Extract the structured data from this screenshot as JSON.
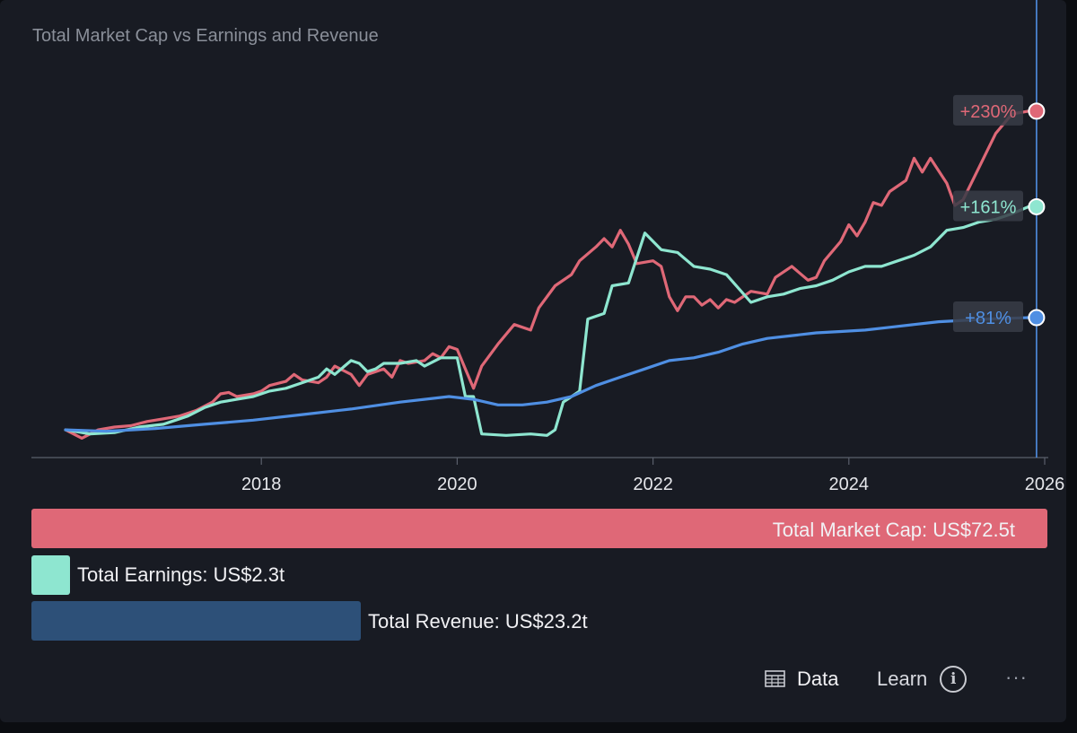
{
  "chart_data": {
    "type": "line",
    "title": "Total Market Cap vs Earnings and Revenue",
    "x_ticks": [
      "2018",
      "2020",
      "2022",
      "2024",
      "2026"
    ],
    "xlim": [
      "2016-01",
      "2026-01"
    ],
    "ylim": [
      -20,
      250
    ],
    "grid": false,
    "cursor_date": "2025-12",
    "series": [
      {
        "name": "Total Market Cap",
        "color": "#df6877",
        "end_label": "+230%",
        "points": [
          [
            "2016-01",
            0
          ],
          [
            "2016-03",
            -6
          ],
          [
            "2016-05",
            0
          ],
          [
            "2016-07",
            2
          ],
          [
            "2016-09",
            3
          ],
          [
            "2016-11",
            6
          ],
          [
            "2017-01",
            8
          ],
          [
            "2017-03",
            10
          ],
          [
            "2017-05",
            14
          ],
          [
            "2017-07",
            20
          ],
          [
            "2017-08",
            26
          ],
          [
            "2017-09",
            27
          ],
          [
            "2017-10",
            24
          ],
          [
            "2017-12",
            26
          ],
          [
            "2018-01",
            28
          ],
          [
            "2018-02",
            32
          ],
          [
            "2018-04",
            35
          ],
          [
            "2018-05",
            40
          ],
          [
            "2018-06",
            36
          ],
          [
            "2018-08",
            34
          ],
          [
            "2018-09",
            38
          ],
          [
            "2018-10",
            46
          ],
          [
            "2018-12",
            40
          ],
          [
            "2019-01",
            32
          ],
          [
            "2019-02",
            40
          ],
          [
            "2019-04",
            44
          ],
          [
            "2019-05",
            38
          ],
          [
            "2019-06",
            50
          ],
          [
            "2019-07",
            48
          ],
          [
            "2019-09",
            50
          ],
          [
            "2019-10",
            55
          ],
          [
            "2019-11",
            52
          ],
          [
            "2019-12",
            60
          ],
          [
            "2020-01",
            58
          ],
          [
            "2020-02",
            44
          ],
          [
            "2020-03",
            30
          ],
          [
            "2020-04",
            46
          ],
          [
            "2020-06",
            62
          ],
          [
            "2020-08",
            76
          ],
          [
            "2020-10",
            72
          ],
          [
            "2020-11",
            88
          ],
          [
            "2021-01",
            104
          ],
          [
            "2021-03",
            112
          ],
          [
            "2021-04",
            122
          ],
          [
            "2021-06",
            132
          ],
          [
            "2021-07",
            138
          ],
          [
            "2021-08",
            132
          ],
          [
            "2021-09",
            144
          ],
          [
            "2021-10",
            134
          ],
          [
            "2021-11",
            120
          ],
          [
            "2022-01",
            122
          ],
          [
            "2022-02",
            118
          ],
          [
            "2022-03",
            96
          ],
          [
            "2022-04",
            86
          ],
          [
            "2022-05",
            96
          ],
          [
            "2022-06",
            96
          ],
          [
            "2022-07",
            90
          ],
          [
            "2022-08",
            94
          ],
          [
            "2022-09",
            88
          ],
          [
            "2022-10",
            94
          ],
          [
            "2022-11",
            92
          ],
          [
            "2022-12",
            96
          ],
          [
            "2023-01",
            100
          ],
          [
            "2023-03",
            98
          ],
          [
            "2023-04",
            110
          ],
          [
            "2023-06",
            118
          ],
          [
            "2023-08",
            108
          ],
          [
            "2023-09",
            110
          ],
          [
            "2023-10",
            122
          ],
          [
            "2023-12",
            136
          ],
          [
            "2024-01",
            148
          ],
          [
            "2024-02",
            140
          ],
          [
            "2024-03",
            150
          ],
          [
            "2024-04",
            164
          ],
          [
            "2024-05",
            162
          ],
          [
            "2024-06",
            172
          ],
          [
            "2024-08",
            180
          ],
          [
            "2024-09",
            196
          ],
          [
            "2024-10",
            186
          ],
          [
            "2024-11",
            196
          ],
          [
            "2025-01",
            178
          ],
          [
            "2025-02",
            162
          ],
          [
            "2025-03",
            166
          ],
          [
            "2025-05",
            190
          ],
          [
            "2025-07",
            214
          ],
          [
            "2025-09",
            228
          ],
          [
            "2025-11",
            230
          ]
        ]
      },
      {
        "name": "Total Earnings",
        "color": "#8ee6d0",
        "end_label": "+161%",
        "points": [
          [
            "2016-01",
            0
          ],
          [
            "2016-04",
            -3
          ],
          [
            "2016-07",
            -2
          ],
          [
            "2016-10",
            2
          ],
          [
            "2017-01",
            4
          ],
          [
            "2017-02",
            6
          ],
          [
            "2017-04",
            10
          ],
          [
            "2017-06",
            16
          ],
          [
            "2017-08",
            20
          ],
          [
            "2017-10",
            22
          ],
          [
            "2017-12",
            24
          ],
          [
            "2018-02",
            28
          ],
          [
            "2018-04",
            30
          ],
          [
            "2018-06",
            34
          ],
          [
            "2018-08",
            38
          ],
          [
            "2018-09",
            44
          ],
          [
            "2018-10",
            40
          ],
          [
            "2018-12",
            50
          ],
          [
            "2019-01",
            48
          ],
          [
            "2019-02",
            42
          ],
          [
            "2019-03",
            44
          ],
          [
            "2019-04",
            48
          ],
          [
            "2019-06",
            48
          ],
          [
            "2019-08",
            50
          ],
          [
            "2019-09",
            46
          ],
          [
            "2019-11",
            52
          ],
          [
            "2020-01",
            52
          ],
          [
            "2020-02",
            24
          ],
          [
            "2020-03",
            24
          ],
          [
            "2020-04",
            -3
          ],
          [
            "2020-07",
            -4
          ],
          [
            "2020-10",
            -3
          ],
          [
            "2020-12",
            -4
          ],
          [
            "2021-01",
            0
          ],
          [
            "2021-02",
            20
          ],
          [
            "2021-04",
            28
          ],
          [
            "2021-05",
            80
          ],
          [
            "2021-07",
            84
          ],
          [
            "2021-08",
            104
          ],
          [
            "2021-10",
            106
          ],
          [
            "2021-12",
            142
          ],
          [
            "2022-02",
            130
          ],
          [
            "2022-04",
            128
          ],
          [
            "2022-06",
            118
          ],
          [
            "2022-08",
            116
          ],
          [
            "2022-10",
            112
          ],
          [
            "2023-01",
            92
          ],
          [
            "2023-03",
            96
          ],
          [
            "2023-05",
            98
          ],
          [
            "2023-07",
            102
          ],
          [
            "2023-09",
            104
          ],
          [
            "2023-11",
            108
          ],
          [
            "2024-01",
            114
          ],
          [
            "2024-03",
            118
          ],
          [
            "2024-05",
            118
          ],
          [
            "2024-07",
            122
          ],
          [
            "2024-09",
            126
          ],
          [
            "2024-11",
            132
          ],
          [
            "2025-01",
            144
          ],
          [
            "2025-03",
            146
          ],
          [
            "2025-05",
            150
          ],
          [
            "2025-07",
            152
          ],
          [
            "2025-09",
            156
          ],
          [
            "2025-11",
            161
          ]
        ]
      },
      {
        "name": "Total Revenue",
        "color": "#4f8fe3",
        "end_label": "+81%",
        "points": [
          [
            "2016-01",
            0
          ],
          [
            "2016-06",
            -1
          ],
          [
            "2016-12",
            1
          ],
          [
            "2017-06",
            4
          ],
          [
            "2017-12",
            7
          ],
          [
            "2018-06",
            11
          ],
          [
            "2018-12",
            15
          ],
          [
            "2019-06",
            20
          ],
          [
            "2019-12",
            24
          ],
          [
            "2020-03",
            22
          ],
          [
            "2020-06",
            18
          ],
          [
            "2020-09",
            18
          ],
          [
            "2020-12",
            20
          ],
          [
            "2021-03",
            24
          ],
          [
            "2021-06",
            32
          ],
          [
            "2021-09",
            38
          ],
          [
            "2021-12",
            44
          ],
          [
            "2022-03",
            50
          ],
          [
            "2022-06",
            52
          ],
          [
            "2022-09",
            56
          ],
          [
            "2022-12",
            62
          ],
          [
            "2023-03",
            66
          ],
          [
            "2023-06",
            68
          ],
          [
            "2023-09",
            70
          ],
          [
            "2023-12",
            71
          ],
          [
            "2024-03",
            72
          ],
          [
            "2024-06",
            74
          ],
          [
            "2024-09",
            76
          ],
          [
            "2024-12",
            78
          ],
          [
            "2025-03",
            79
          ],
          [
            "2025-06",
            80
          ],
          [
            "2025-11",
            81
          ]
        ]
      }
    ]
  },
  "bars": [
    {
      "label": "Total Market Cap: US$72.5t",
      "value": 72.5,
      "color": "#df6877"
    },
    {
      "label": "Total Earnings: US$2.3t",
      "value": 2.3,
      "color": "#8ee6d0"
    },
    {
      "label": "Total Revenue: US$23.2t",
      "value": 23.2,
      "color": "#2d5078"
    }
  ],
  "footer": {
    "data_label": "Data",
    "learn_label": "Learn",
    "more_label": "···"
  }
}
